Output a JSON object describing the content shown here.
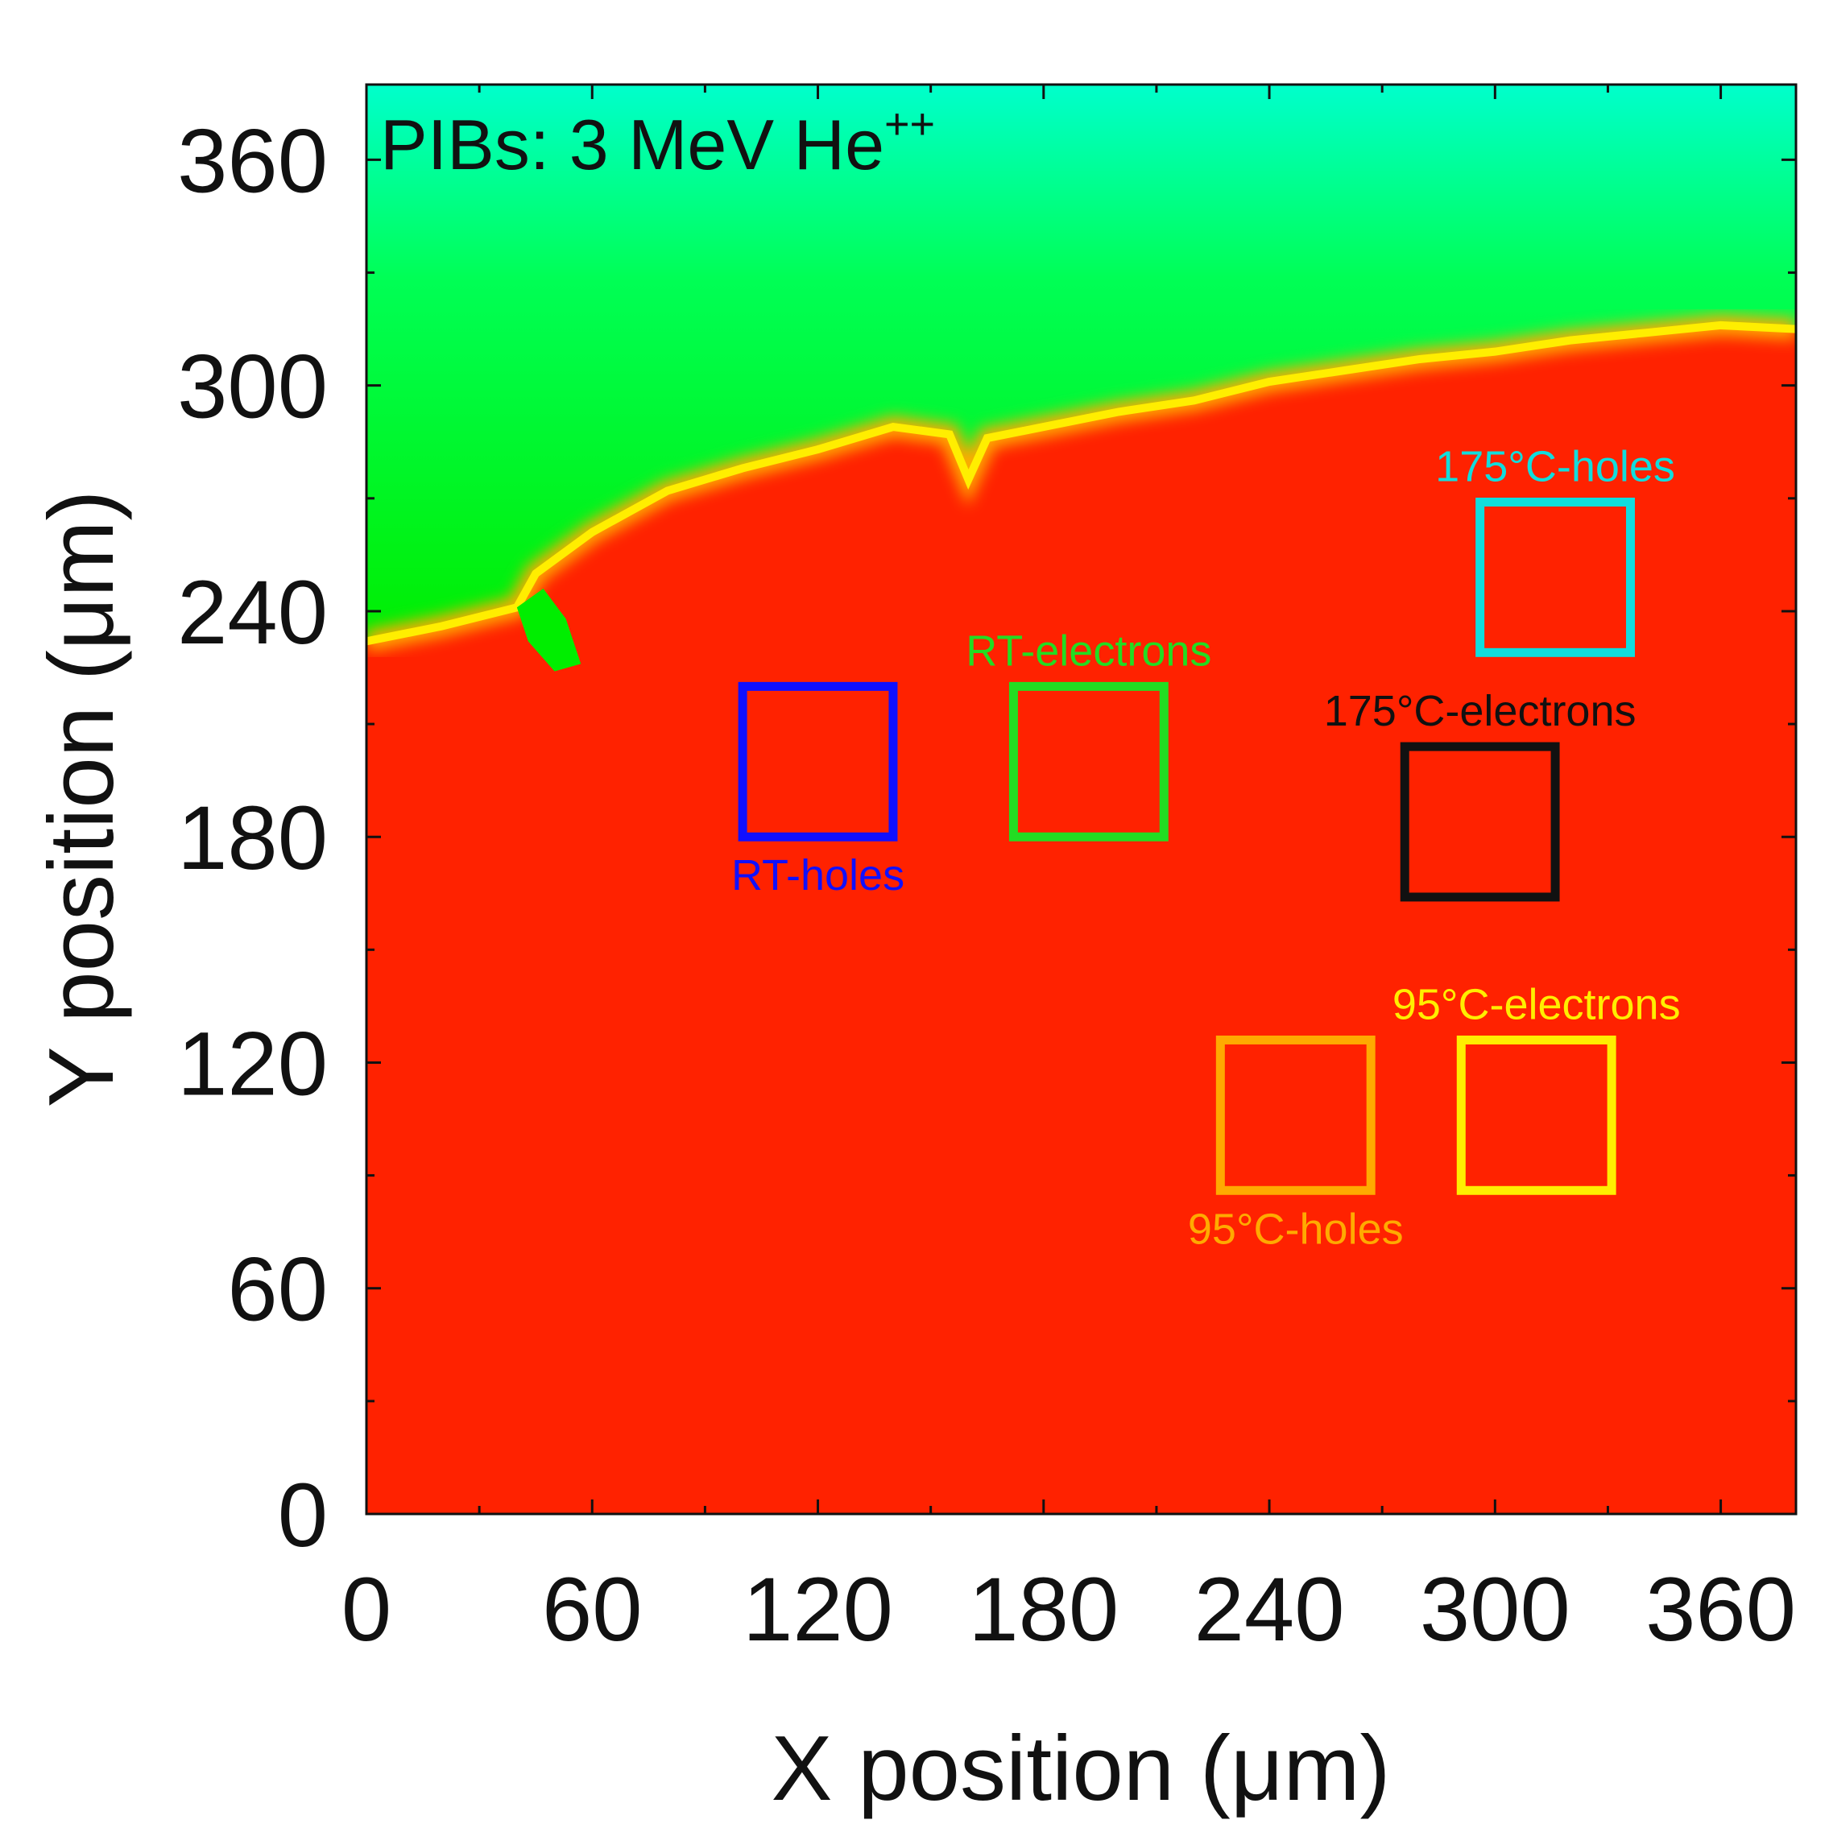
{
  "chart_data": {
    "type": "heatmap",
    "title": "PIBs: 3 MeV He",
    "title_superscript": "++",
    "xlabel": "X position (μm)",
    "ylabel": "Y position (μm)",
    "xlim": [
      0,
      380
    ],
    "ylim": [
      0,
      380
    ],
    "xticks": [
      0,
      60,
      120,
      180,
      240,
      300,
      360
    ],
    "yticks": [
      0,
      60,
      120,
      180,
      240,
      300,
      360
    ],
    "colormap": [
      "#ff2200",
      "#ff9900",
      "#ffee00",
      "#00ee00",
      "#00ffcc"
    ],
    "background_color": "#ff2200",
    "upper_region_color": "#00ee00",
    "boundary_color": "#ffaa00",
    "boundary": [
      [
        0,
        232
      ],
      [
        20,
        236
      ],
      [
        40,
        241
      ],
      [
        45,
        250
      ],
      [
        60,
        261
      ],
      [
        80,
        272
      ],
      [
        100,
        278
      ],
      [
        120,
        283
      ],
      [
        140,
        289
      ],
      [
        155,
        287
      ],
      [
        160,
        275
      ],
      [
        165,
        286
      ],
      [
        180,
        289
      ],
      [
        200,
        293
      ],
      [
        220,
        296
      ],
      [
        240,
        301
      ],
      [
        260,
        304
      ],
      [
        280,
        307
      ],
      [
        300,
        309
      ],
      [
        320,
        312
      ],
      [
        340,
        314
      ],
      [
        360,
        316
      ],
      [
        380,
        315
      ]
    ],
    "green_pocket": [
      [
        40,
        241
      ],
      [
        47,
        246
      ],
      [
        53,
        238
      ],
      [
        57,
        226
      ],
      [
        50,
        224
      ],
      [
        43,
        232
      ]
    ],
    "regions": [
      {
        "label": "RT-holes",
        "color": "#1010ff",
        "x": [
          100,
          140
        ],
        "y": [
          180,
          220
        ],
        "label_position": "below"
      },
      {
        "label": "RT-electrons",
        "color": "#22dd22",
        "x": [
          172,
          212
        ],
        "y": [
          180,
          220
        ],
        "label_position": "above"
      },
      {
        "label": "175°C-holes",
        "color": "#11dddd",
        "x": [
          296,
          336
        ],
        "y": [
          229,
          269
        ],
        "label_position": "above"
      },
      {
        "label": "175°C-electrons",
        "color": "#111111",
        "x": [
          276,
          316
        ],
        "y": [
          164,
          204
        ],
        "label_position": "above"
      },
      {
        "label": "95°C-holes",
        "color": "#ffaa00",
        "x": [
          227,
          267
        ],
        "y": [
          86,
          126
        ],
        "label_position": "below"
      },
      {
        "label": "95°C-electrons",
        "color": "#ffee00",
        "x": [
          291,
          331
        ],
        "y": [
          86,
          126
        ],
        "label_position": "above"
      }
    ]
  }
}
